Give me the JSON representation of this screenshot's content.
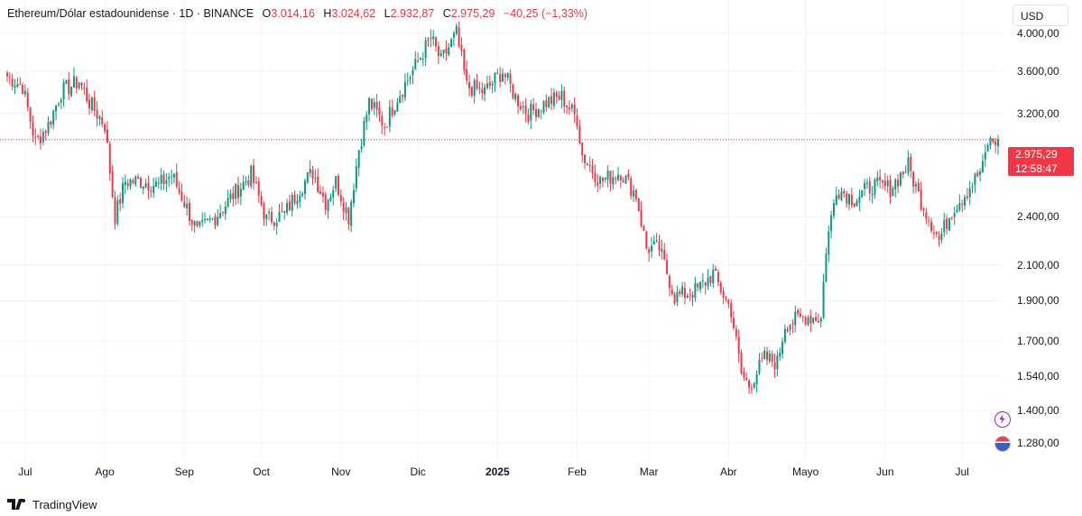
{
  "legend": {
    "symbol": "Ethereum/Dólar estadounidense · 1D · BINANCE",
    "open_label": "O",
    "open": "3.014,16",
    "high_label": "H",
    "high": "3.024,62",
    "low_label": "L",
    "low": "2.932,87",
    "close_label": "C",
    "close": "2.975,29",
    "change": "−40,25 (−1,33%)"
  },
  "currency_button": "USD",
  "last_price": "2.975,29",
  "countdown": "12:58:47",
  "footer": {
    "brand": "TradingView"
  },
  "colors": {
    "up": "#089981",
    "down": "#f23645",
    "grid": "#f0f3fa"
  },
  "chart_data": {
    "type": "candlestick",
    "title": "Ethereum/Dólar estadounidense · 1D · BINANCE",
    "y_scale": "log",
    "ylim": [
      1220,
      4300
    ],
    "y_ticks": [
      "4.000,00",
      "3.600,00",
      "3.200,00",
      "2.400,00",
      "2.100,00",
      "1.900,00",
      "1.700,00",
      "1.540,00",
      "1.400,00",
      "1.280,00"
    ],
    "y_tick_values": [
      4000,
      3600,
      3200,
      2400,
      2100,
      1900,
      1700,
      1540,
      1400,
      1280
    ],
    "months": [
      "Jul",
      "Ago",
      "Sep",
      "Oct",
      "Nov",
      "Dic",
      "2025",
      "Feb",
      "Mar",
      "Abr",
      "Mayo",
      "Jun",
      "Jul"
    ],
    "series": [
      {
        "anchors": [
          [
            "2024-06-24",
            3550
          ],
          [
            "2024-06-30",
            3450
          ],
          [
            "2024-07-05",
            2950
          ],
          [
            "2024-07-10",
            3100
          ],
          [
            "2024-07-15",
            3400
          ],
          [
            "2024-07-22",
            3500
          ],
          [
            "2024-07-26",
            3300
          ],
          [
            "2024-08-01",
            3100
          ],
          [
            "2024-08-05",
            2400
          ],
          [
            "2024-08-09",
            2650
          ],
          [
            "2024-08-15",
            2650
          ],
          [
            "2024-08-22",
            2620
          ],
          [
            "2024-08-27",
            2700
          ],
          [
            "2024-09-01",
            2500
          ],
          [
            "2024-09-06",
            2300
          ],
          [
            "2024-09-13",
            2400
          ],
          [
            "2024-09-20",
            2550
          ],
          [
            "2024-09-27",
            2700
          ],
          [
            "2024-10-03",
            2380
          ],
          [
            "2024-10-10",
            2420
          ],
          [
            "2024-10-16",
            2600
          ],
          [
            "2024-10-21",
            2720
          ],
          [
            "2024-10-26",
            2500
          ],
          [
            "2024-10-30",
            2650
          ],
          [
            "2024-11-04",
            2400
          ],
          [
            "2024-11-08",
            2900
          ],
          [
            "2024-11-12",
            3300
          ],
          [
            "2024-11-18",
            3100
          ],
          [
            "2024-11-23",
            3350
          ],
          [
            "2024-11-30",
            3650
          ],
          [
            "2024-12-06",
            3950
          ],
          [
            "2024-12-10",
            3700
          ],
          [
            "2024-12-16",
            4000
          ],
          [
            "2024-12-20",
            3450
          ],
          [
            "2024-12-27",
            3400
          ],
          [
            "2025-01-03",
            3600
          ],
          [
            "2025-01-08",
            3350
          ],
          [
            "2025-01-13",
            3200
          ],
          [
            "2025-01-20",
            3300
          ],
          [
            "2025-01-26",
            3350
          ],
          [
            "2025-02-01",
            3150
          ],
          [
            "2025-02-03",
            2850
          ],
          [
            "2025-02-10",
            2650
          ],
          [
            "2025-02-18",
            2720
          ],
          [
            "2025-02-24",
            2550
          ],
          [
            "2025-02-28",
            2200
          ],
          [
            "2025-03-05",
            2200
          ],
          [
            "2025-03-11",
            1920
          ],
          [
            "2025-03-20",
            1960
          ],
          [
            "2025-03-26",
            2050
          ],
          [
            "2025-04-02",
            1850
          ],
          [
            "2025-04-06",
            1550
          ],
          [
            "2025-04-09",
            1500
          ],
          [
            "2025-04-15",
            1620
          ],
          [
            "2025-04-20",
            1600
          ],
          [
            "2025-04-23",
            1780
          ],
          [
            "2025-05-01",
            1820
          ],
          [
            "2025-05-07",
            1810
          ],
          [
            "2025-05-09",
            2200
          ],
          [
            "2025-05-13",
            2600
          ],
          [
            "2025-05-20",
            2520
          ],
          [
            "2025-05-27",
            2620
          ],
          [
            "2025-06-03",
            2600
          ],
          [
            "2025-06-10",
            2770
          ],
          [
            "2025-06-14",
            2550
          ],
          [
            "2025-06-22",
            2250
          ],
          [
            "2025-06-27",
            2450
          ],
          [
            "2025-07-03",
            2580
          ],
          [
            "2025-07-09",
            2750
          ],
          [
            "2025-07-11",
            2950
          ],
          [
            "2025-07-15",
            2975
          ]
        ]
      }
    ]
  }
}
